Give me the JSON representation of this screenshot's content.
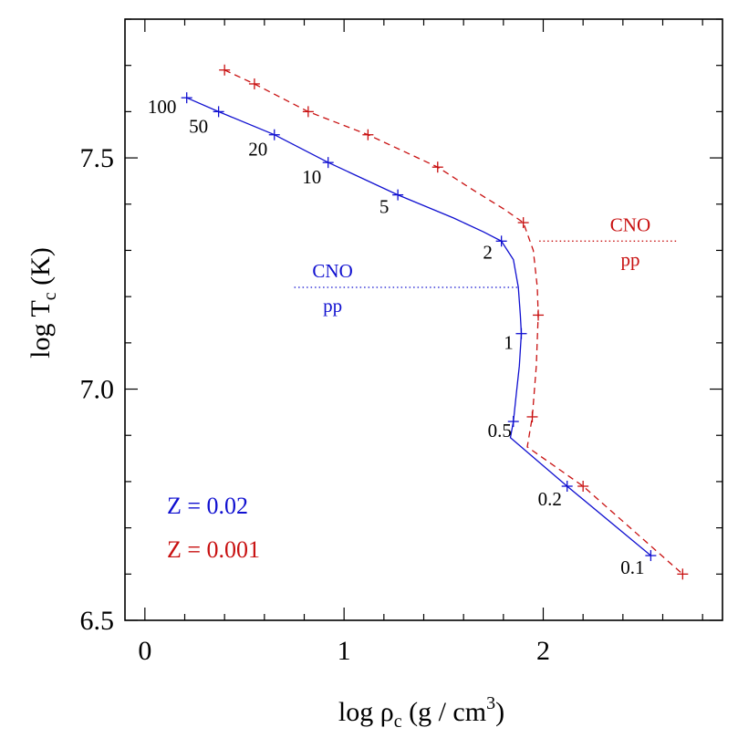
{
  "chart_data": {
    "type": "line",
    "xlabel": "log ρ",
    "xlabel_sub": "c",
    "xlabel_unit": "(g / cm",
    "xlabel_sup": "3",
    "xlabel_close": ")",
    "ylabel": "log T",
    "ylabel_sub": "c",
    "ylabel_unit": "(K)",
    "xlim": [
      -0.1,
      2.9
    ],
    "ylim": [
      6.5,
      7.8
    ],
    "xticks": [
      0,
      1,
      2
    ],
    "xtick_labels": [
      "0",
      "1",
      "2"
    ],
    "yticks": [
      6.5,
      7.0,
      7.5
    ],
    "ytick_labels": [
      "6.5",
      "7.0",
      "7.5"
    ],
    "grid": false,
    "series": [
      {
        "name": "Z = 0.02",
        "color": "#1010d0",
        "linestyle": "solid",
        "curve": [
          [
            0.21,
            7.63
          ],
          [
            0.37,
            7.6
          ],
          [
            0.65,
            7.55
          ],
          [
            0.92,
            7.49
          ],
          [
            1.27,
            7.42
          ],
          [
            1.55,
            7.37
          ],
          [
            1.7,
            7.34
          ],
          [
            1.79,
            7.32
          ],
          [
            1.85,
            7.28
          ],
          [
            1.875,
            7.22
          ],
          [
            1.885,
            7.16
          ],
          [
            1.89,
            7.12
          ],
          [
            1.88,
            7.05
          ],
          [
            1.865,
            6.99
          ],
          [
            1.85,
            6.93
          ],
          [
            1.835,
            6.895
          ],
          [
            2.12,
            6.79
          ],
          [
            2.54,
            6.64
          ]
        ],
        "markers": [
          {
            "x": 0.21,
            "y": 7.63,
            "label": "100"
          },
          {
            "x": 0.37,
            "y": 7.6,
            "label": "50"
          },
          {
            "x": 0.65,
            "y": 7.55,
            "label": "20"
          },
          {
            "x": 0.92,
            "y": 7.49,
            "label": "10"
          },
          {
            "x": 1.27,
            "y": 7.42,
            "label": "5"
          },
          {
            "x": 1.79,
            "y": 7.32,
            "label": "2"
          },
          {
            "x": 1.89,
            "y": 7.12,
            "label": "1"
          },
          {
            "x": 1.85,
            "y": 6.93,
            "label": "0.5"
          },
          {
            "x": 2.12,
            "y": 6.79,
            "label": "0.2"
          },
          {
            "x": 2.54,
            "y": 6.64,
            "label": "0.1"
          }
        ]
      },
      {
        "name": "Z = 0.001",
        "color": "#c81010",
        "linestyle": "dashed",
        "curve": [
          [
            0.4,
            7.69
          ],
          [
            0.55,
            7.66
          ],
          [
            0.82,
            7.6
          ],
          [
            1.12,
            7.55
          ],
          [
            1.47,
            7.48
          ],
          [
            1.65,
            7.43
          ],
          [
            1.8,
            7.39
          ],
          [
            1.9,
            7.36
          ],
          [
            1.95,
            7.3
          ],
          [
            1.97,
            7.22
          ],
          [
            1.975,
            7.16
          ],
          [
            1.965,
            7.05
          ],
          [
            1.945,
            6.94
          ],
          [
            1.92,
            6.875
          ],
          [
            2.2,
            6.79
          ],
          [
            2.7,
            6.6
          ]
        ],
        "markers": [
          {
            "x": 0.4,
            "y": 7.69
          },
          {
            "x": 0.55,
            "y": 7.66
          },
          {
            "x": 0.82,
            "y": 7.6
          },
          {
            "x": 1.12,
            "y": 7.55
          },
          {
            "x": 1.47,
            "y": 7.48
          },
          {
            "x": 1.9,
            "y": 7.36
          },
          {
            "x": 1.975,
            "y": 7.16
          },
          {
            "x": 1.945,
            "y": 6.94
          },
          {
            "x": 2.2,
            "y": 6.79
          },
          {
            "x": 2.7,
            "y": 6.6
          }
        ]
      }
    ],
    "annotations": [
      {
        "kind": "boundary",
        "series": "Z = 0.02",
        "y": 7.22,
        "x_range": [
          0.75,
          1.88
        ],
        "upper": "CNO",
        "lower": "pp",
        "color": "#1010d0"
      },
      {
        "kind": "boundary",
        "series": "Z = 0.001",
        "y": 7.32,
        "x_range": [
          1.98,
          2.68
        ],
        "upper": "CNO",
        "lower": "pp",
        "color": "#c81010"
      }
    ],
    "legend": {
      "placement": "bottom-left",
      "entries": [
        {
          "text": "Z = 0.02",
          "color": "#1010d0"
        },
        {
          "text": "Z = 0.001",
          "color": "#c81010"
        }
      ]
    }
  }
}
